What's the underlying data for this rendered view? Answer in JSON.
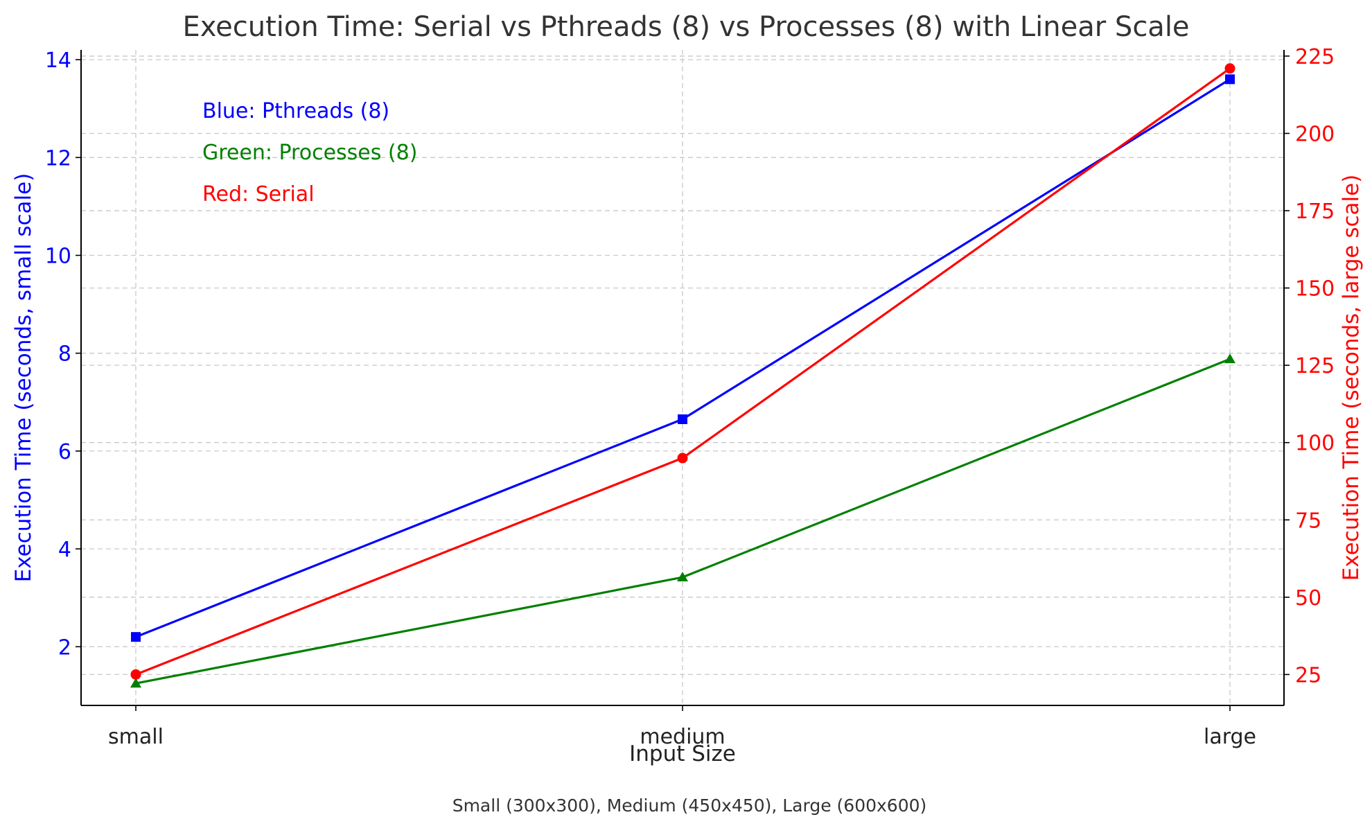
{
  "chart_data": {
    "type": "line",
    "title": "Execution Time: Serial vs Pthreads (8) vs Processes (8) with Linear Scale",
    "xlabel": "Input Size",
    "ylabel_left": "Execution Time (seconds, small scale)",
    "ylabel_right": "Execution Time (seconds, large scale)",
    "categories": [
      "small",
      "medium",
      "large"
    ],
    "ylim_left": [
      0.8,
      14.2
    ],
    "ylim_right": [
      15,
      227
    ],
    "yticks_left": [
      "2",
      "4",
      "6",
      "8",
      "10",
      "12",
      "14"
    ],
    "yticks_right": [
      "25",
      "50",
      "75",
      "100",
      "125",
      "150",
      "175",
      "200",
      "225"
    ],
    "grid": true,
    "series": [
      {
        "axis": "left",
        "color": "#0000ff",
        "marker": "square",
        "values": [
          2.2,
          6.65,
          13.6
        ]
      },
      {
        "axis": "left",
        "color": "#008000",
        "marker": "triangle",
        "values": [
          1.25,
          3.42,
          7.88
        ]
      },
      {
        "axis": "right",
        "color": "#ff0000",
        "marker": "circle",
        "values": [
          25,
          95,
          221
        ]
      }
    ],
    "annotations": [
      {
        "text": "Blue: Pthreads (8)",
        "color": "#0000ff"
      },
      {
        "text": "Green: Processes (8)",
        "color": "#008000"
      },
      {
        "text": "Red: Serial",
        "color": "#ff0000"
      }
    ],
    "caption": "Small (300x300), Medium (450x450), Large (600x600)"
  }
}
